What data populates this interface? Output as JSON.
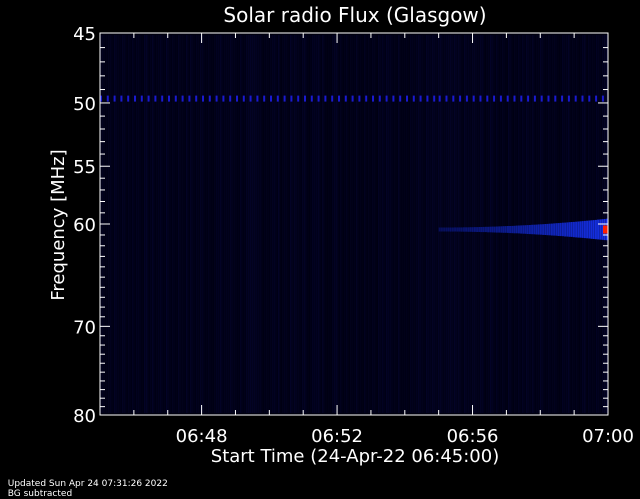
{
  "chart_data": {
    "type": "heatmap",
    "title": "Solar radio Flux (Glasgow)",
    "xlabel": "Start Time (24-Apr-22 06:45:00)",
    "ylabel": "Frequency [MHz]",
    "x_ticks": [
      "06:48",
      "06:52",
      "06:56",
      "07:00"
    ],
    "x_tick_minutes": [
      48,
      52,
      56,
      60
    ],
    "xlim_minutes": [
      45,
      60
    ],
    "y_ticks": [
      45,
      50,
      55,
      60,
      70,
      80
    ],
    "ylim": [
      45,
      80
    ],
    "y_scale": "log",
    "colormap": [
      "#000000",
      "#000040",
      "#0000c0",
      "#2040ff",
      "#ff0000",
      "#ffff80"
    ],
    "features": [
      {
        "label": "interference line",
        "frequency_mhz": 49.6,
        "t_start": 45.0,
        "t_end": 55.0,
        "intensity": 0.45
      },
      {
        "label": "interference line",
        "frequency_mhz": 49.6,
        "t_start": 55.0,
        "t_end": 60.0,
        "intensity": 0.4
      },
      {
        "label": "burst",
        "frequency_mhz": 60.5,
        "t_start": 55.0,
        "t_end": 60.0,
        "intensity": 0.9
      }
    ]
  },
  "footer": {
    "updated": "Updated Sun Apr 24 07:31:26 2022",
    "note": "BG subtracted"
  }
}
